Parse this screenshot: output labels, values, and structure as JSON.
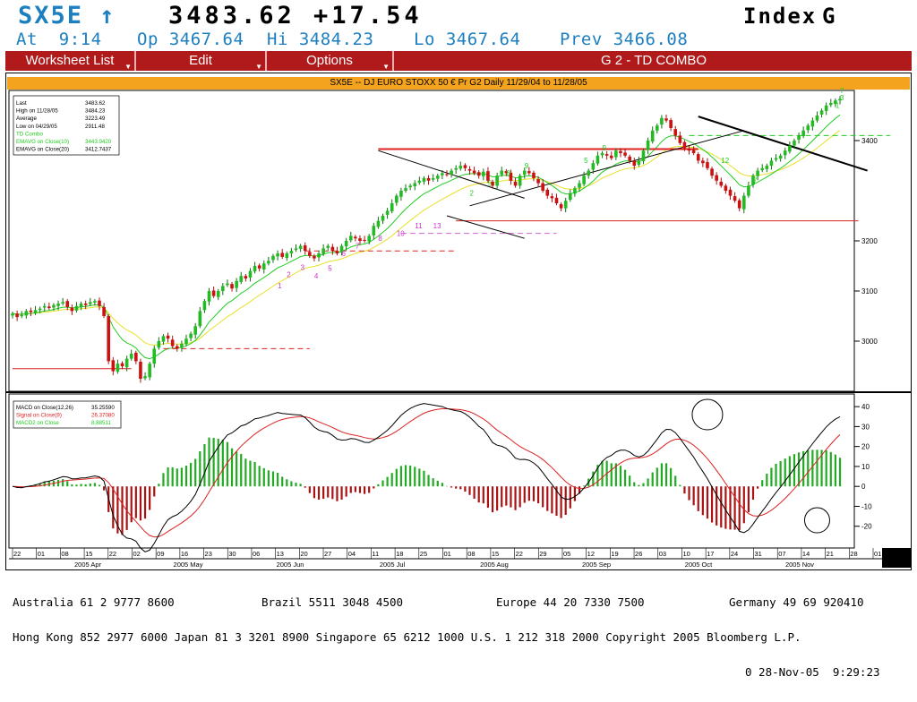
{
  "header": {
    "ticker": "SX5E ↑",
    "price_line": "3483.62 +17.54",
    "index_label": "Index",
    "index_key": "G",
    "at": "At  9:14",
    "open": "Op 3467.64",
    "high": "Hi 3484.23",
    "low": "Lo 3467.64",
    "prev": "Prev 3466.08"
  },
  "menu": {
    "worksheet": "Worksheet List",
    "edit": "Edit",
    "options": "Options",
    "title": "G  2 - TD COMBO"
  },
  "chart_title": "SX5E -- DJ EURO STOXX 50 € Pr G2 Daily 11/29/04 to 11/28/05",
  "legend_top": [
    {
      "label": "Last",
      "value": "3483.62",
      "color": "#000000"
    },
    {
      "label": "High on  11/28/05",
      "value": "3484.23",
      "color": "#000000"
    },
    {
      "label": "Average",
      "value": "3223.49",
      "color": "#000000"
    },
    {
      "label": "Low on  04/29/05",
      "value": "2911.48",
      "color": "#000000"
    },
    {
      "label": "TD Combo",
      "value": "",
      "color": "#22cc22"
    },
    {
      "label": "EMAVG on Close(10)",
      "value": "3443.9420",
      "color": "#22cc22"
    },
    {
      "label": "EMAVG on Close(20)",
      "value": "3412.7437",
      "color": "#000000"
    }
  ],
  "legend_bottom": [
    {
      "label": "MACD on Close(12,26)",
      "value": "35.25590",
      "color": "#000000"
    },
    {
      "label": "Signal on Close(9)",
      "value": "26.37080",
      "color": "#dd2222"
    },
    {
      "label": "MACD2 on Close",
      "value": "8.88511",
      "color": "#22cc22"
    }
  ],
  "x_ticks": [
    "22",
    "01",
    "08",
    "15",
    "22",
    "28",
    "07",
    "14",
    "21",
    "28",
    "04",
    "11",
    "18",
    "25",
    "02",
    "09",
    "16",
    "23",
    "30",
    "06",
    "13",
    "20",
    "27",
    "04",
    "11",
    "18",
    "25",
    "01",
    "08",
    "15",
    "22",
    "29",
    "05",
    "12",
    "19",
    "26",
    "01",
    "08",
    "15",
    "22",
    "29",
    "05",
    "12",
    "19",
    "26",
    "03",
    "10",
    "17",
    "24",
    "31",
    "07",
    "14",
    "21",
    "28",
    "05",
    "12",
    "19",
    "26",
    "02",
    "09",
    "16",
    "23",
    "30",
    "06",
    "13",
    "20",
    "27",
    "03",
    "10",
    "17",
    "24",
    "31",
    "07",
    "14",
    "21",
    "28",
    "05",
    "12",
    "19",
    "26",
    "02",
    "09",
    "16",
    "23",
    "30",
    "07",
    "14",
    "21",
    "28",
    "04",
    "11",
    "18",
    "25",
    "01",
    "08",
    "15",
    "22",
    "29",
    "05",
    "12",
    "19",
    "26",
    "03",
    "10",
    "17",
    "24",
    "31",
    "07",
    "14",
    "21",
    "28",
    "04",
    "11",
    "18",
    "25",
    "01",
    "08",
    "15",
    "22",
    "29",
    "05",
    "12",
    "19",
    "26",
    "03",
    "10",
    "17",
    "24",
    "31",
    "07",
    "14",
    "21",
    "28",
    "05",
    "12",
    "19",
    "26",
    "02",
    "09",
    "16",
    "23",
    "30",
    "06",
    "13",
    "20",
    "27",
    "03",
    "10",
    "17",
    "24",
    "01",
    "08",
    "15",
    "22",
    "29",
    "05",
    "12",
    "19",
    "26",
    "03",
    "10",
    "17",
    "24",
    "31",
    "07",
    "14",
    "21",
    "28",
    "05",
    "12",
    "19",
    "26",
    "02",
    "09",
    "16",
    "23",
    "30",
    "06",
    "13",
    "20",
    "27",
    "03",
    "10",
    "17",
    "24",
    "01",
    "08",
    "15",
    "22"
  ],
  "x_axis": {
    "ticks": [
      "22",
      "01",
      "08",
      "15",
      "22",
      "02",
      "09",
      "16",
      "23",
      "30",
      "06",
      "13",
      "20",
      "27",
      "04",
      "11",
      "18",
      "25",
      "01",
      "08",
      "15",
      "22",
      "29",
      "05",
      "12",
      "19",
      "26",
      "03",
      "10",
      "17",
      "24",
      "31",
      "07",
      "14",
      "21",
      "28",
      "01"
    ],
    "months": [
      "2005 Apr",
      "2005 May",
      "2005 Jun",
      "2005 Jul",
      "2005 Aug",
      "2005 Sep",
      "2005 Oct",
      "2005 Nov"
    ]
  },
  "chart_data": [
    {
      "type": "candlestick",
      "title": "SX5E -- DJ EURO STOXX 50 € Pr G2 Daily 11/29/04 to 11/28/05",
      "y_ticks": [
        3000,
        3100,
        3200,
        3400
      ],
      "ylim": [
        2900,
        3500
      ],
      "close": [
        3055,
        3048,
        3052,
        3060,
        3058,
        3062,
        3065,
        3070,
        3066,
        3072,
        3075,
        3078,
        3068,
        3060,
        3070,
        3075,
        3072,
        3078,
        3080,
        3070,
        3050,
        2960,
        2940,
        2955,
        2950,
        2965,
        2975,
        2960,
        2925,
        2930,
        2955,
        2985,
        3000,
        3010,
        3005,
        2990,
        2985,
        2995,
        3005,
        3015,
        3030,
        3060,
        3080,
        3100,
        3090,
        3100,
        3110,
        3115,
        3105,
        3120,
        3130,
        3125,
        3140,
        3150,
        3145,
        3155,
        3160,
        3170,
        3175,
        3168,
        3175,
        3180,
        3185,
        3190,
        3180,
        3170,
        3165,
        3175,
        3185,
        3190,
        3180,
        3175,
        3190,
        3200,
        3210,
        3205,
        3200,
        3200,
        3210,
        3230,
        3240,
        3250,
        3260,
        3275,
        3290,
        3300,
        3305,
        3310,
        3315,
        3320,
        3325,
        3320,
        3325,
        3330,
        3335,
        3332,
        3340,
        3345,
        3350,
        3345,
        3340,
        3335,
        3330,
        3338,
        3320,
        3310,
        3330,
        3340,
        3335,
        3320,
        3310,
        3330,
        3340,
        3335,
        3325,
        3315,
        3300,
        3290,
        3285,
        3275,
        3265,
        3280,
        3295,
        3305,
        3315,
        3330,
        3340,
        3355,
        3370,
        3375,
        3370,
        3365,
        3380,
        3375,
        3370,
        3360,
        3350,
        3360,
        3380,
        3400,
        3420,
        3430,
        3445,
        3440,
        3425,
        3410,
        3395,
        3385,
        3380,
        3375,
        3360,
        3355,
        3345,
        3330,
        3320,
        3310,
        3300,
        3290,
        3280,
        3265,
        3290,
        3310,
        3330,
        3340,
        3345,
        3350,
        3360,
        3365,
        3370,
        3380,
        3390,
        3400,
        3410,
        3420,
        3430,
        3440,
        3450,
        3460,
        3470,
        3475,
        3480,
        3483
      ]
    },
    {
      "type": "line",
      "title": "MACD",
      "y_ticks": [
        40,
        30,
        20,
        10,
        0,
        -10,
        -20
      ],
      "ylim": [
        -30,
        45
      ],
      "series": [
        {
          "name": "MACD on Close(12,26)",
          "color": "#000000"
        },
        {
          "name": "Signal on Close(9)",
          "color": "#dd2222"
        },
        {
          "name": "MACD2 on Close",
          "color": "#22aa22"
        }
      ]
    }
  ],
  "footer": {
    "line1": [
      {
        "text": "Australia 61 2 9777 8600"
      },
      {
        "text": "Brazil 5511 3048 4500"
      },
      {
        "text": "Europe 44 20 7330 7500"
      },
      {
        "text": "Germany 49 69 920410"
      }
    ],
    "line2": "Hong Kong 852 2977 6000 Japan 81 3 3201 8900 Singapore 65 6212 1000 U.S. 1 212 318 2000 Copyright 2005 Bloomberg L.P.",
    "line3": "0 28-Nov-05  9:29:23"
  }
}
